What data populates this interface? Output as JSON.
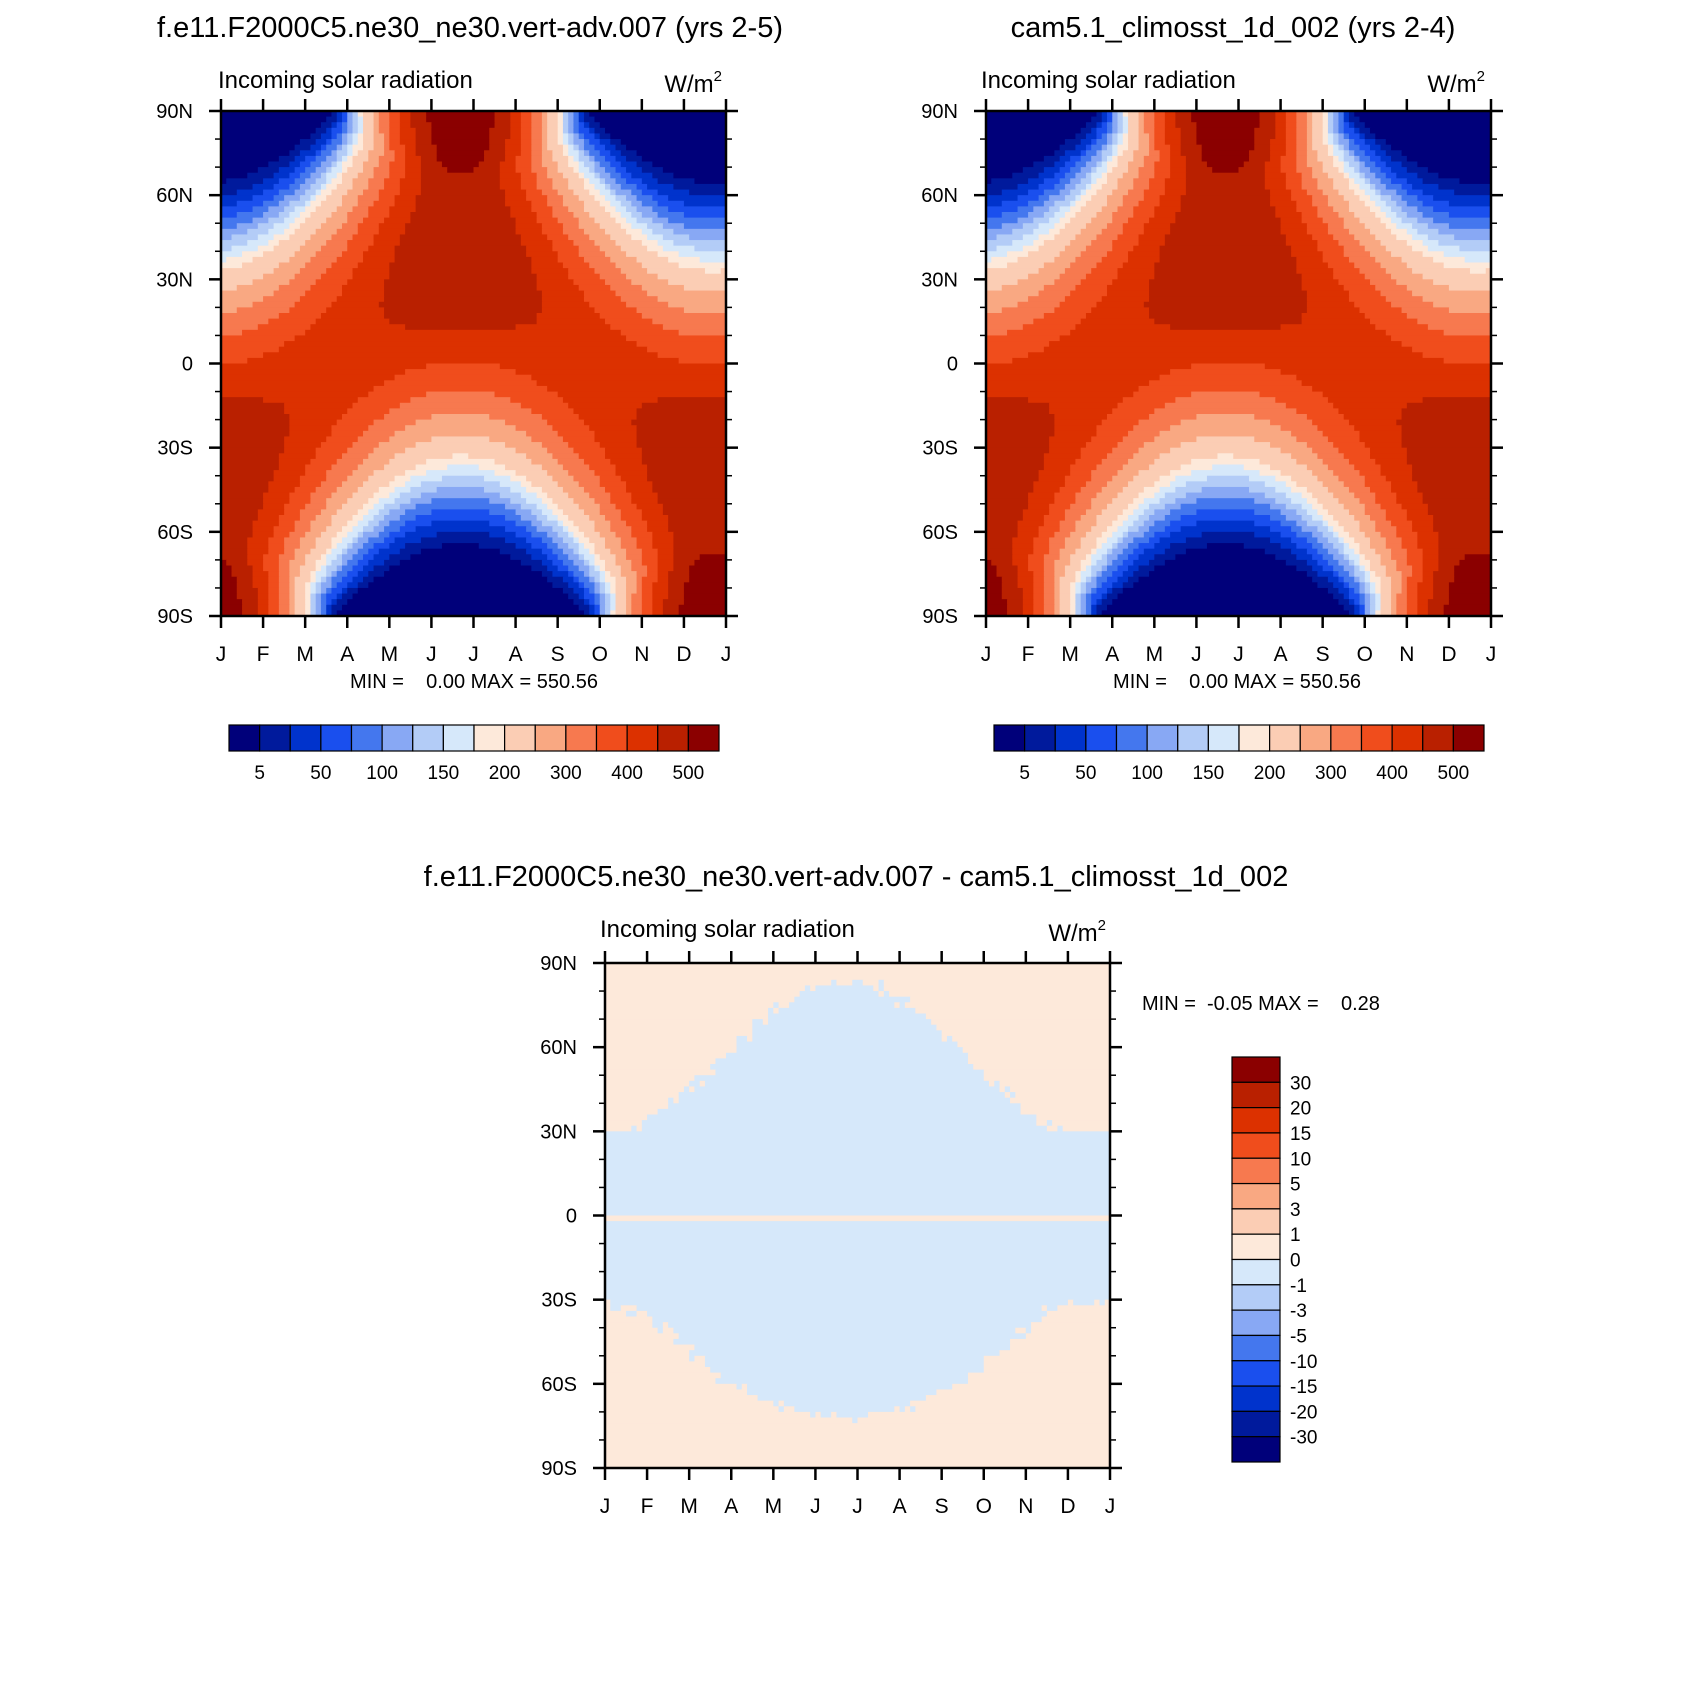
{
  "chart_data": [
    {
      "type": "heatmap",
      "title": "f.e11.F2000C5.ne30_ne30.vert-adv.007 (yrs 2-5)",
      "subtitle": "Incoming solar radiation",
      "units": "W/m",
      "units_sup": "2",
      "x_ticks": [
        "J",
        "F",
        "M",
        "A",
        "M",
        "J",
        "J",
        "A",
        "S",
        "O",
        "N",
        "D",
        "J"
      ],
      "y_ticks": [
        "90N",
        "60N",
        "30N",
        "0",
        "30S",
        "60S",
        "90S"
      ],
      "stats": "MIN =    0.00 MAX = 550.56",
      "colorbar_labels": [
        "5",
        "50",
        "100",
        "150",
        "200",
        "300",
        "400",
        "500"
      ],
      "ylim": [
        -90,
        90
      ],
      "min": 0.0,
      "max": 550.56,
      "field": "annual-insolation"
    },
    {
      "type": "heatmap",
      "title": "cam5.1_climosst_1d_002 (yrs 2-4)",
      "subtitle": "Incoming solar radiation",
      "units": "W/m",
      "units_sup": "2",
      "x_ticks": [
        "J",
        "F",
        "M",
        "A",
        "M",
        "J",
        "J",
        "A",
        "S",
        "O",
        "N",
        "D",
        "J"
      ],
      "y_ticks": [
        "90N",
        "60N",
        "30N",
        "0",
        "30S",
        "60S",
        "90S"
      ],
      "stats": "MIN =    0.00 MAX = 550.56",
      "colorbar_labels": [
        "5",
        "50",
        "100",
        "150",
        "200",
        "300",
        "400",
        "500"
      ],
      "ylim": [
        -90,
        90
      ],
      "min": 0.0,
      "max": 550.56,
      "field": "annual-insolation"
    },
    {
      "type": "heatmap",
      "title": "f.e11.F2000C5.ne30_ne30.vert-adv.007 - cam5.1_climosst_1d_002",
      "subtitle": "Incoming solar radiation",
      "units": "W/m",
      "units_sup": "2",
      "x_ticks": [
        "J",
        "F",
        "M",
        "A",
        "M",
        "J",
        "J",
        "A",
        "S",
        "O",
        "N",
        "D",
        "J"
      ],
      "y_ticks": [
        "90N",
        "60N",
        "30N",
        "0",
        "30S",
        "60S",
        "90S"
      ],
      "stats": "MIN =  -0.05 MAX =    0.28",
      "colorbar_labels": [
        "30",
        "20",
        "15",
        "10",
        "5",
        "3",
        "1",
        "0",
        "-1",
        "-3",
        "-5",
        "-10",
        "-15",
        "-20",
        "-30"
      ],
      "ylim": [
        -90,
        90
      ],
      "min": -0.05,
      "max": 0.28,
      "field": "difference"
    }
  ],
  "colors": {
    "scale16": [
      "#00007a",
      "#001a9c",
      "#0033cc",
      "#1a4fee",
      "#4477ee",
      "#88a8f4",
      "#b3ccf7",
      "#d6e8fa",
      "#fde9da",
      "#fbcdb4",
      "#f9a882",
      "#f7794f",
      "#f04d1c",
      "#dc3100",
      "#b92000",
      "#8b0000"
    ],
    "diff_colorbar": [
      "#8b0000",
      "#b92000",
      "#dc3100",
      "#f04d1c",
      "#f7794f",
      "#f9a882",
      "#fbcdb4",
      "#fde9da",
      "#d6e8fa",
      "#b3ccf7",
      "#88a8f4",
      "#4477ee",
      "#1a4fee",
      "#0033cc",
      "#001a9c",
      "#00007a"
    ],
    "diff_positive": "#fde9da",
    "diff_negative": "#d6e8fa"
  }
}
